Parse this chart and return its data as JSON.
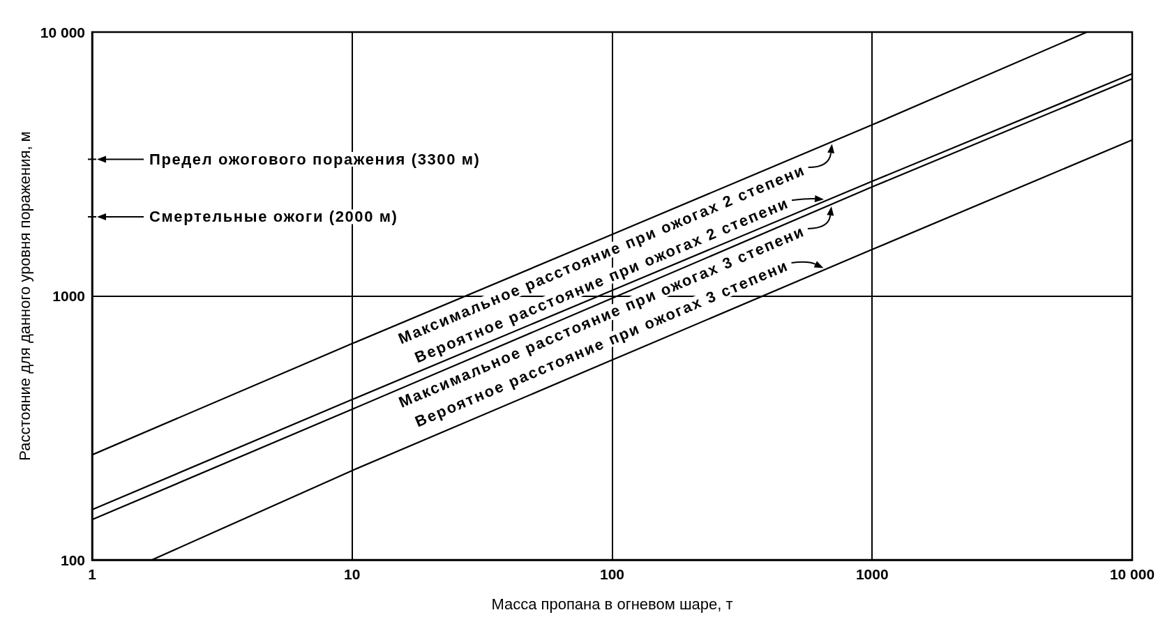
{
  "chart_data": {
    "type": "line",
    "xlabel": "Масса пропана в огневом шаре, т",
    "ylabel": "Расстояние для данного уровня поражения, м",
    "log": "xy",
    "xlim": [
      1,
      10000
    ],
    "ylim": [
      100,
      10000
    ],
    "xticks": [
      1,
      10,
      100,
      1000,
      {
        "value": 10000,
        "label": "10 000"
      }
    ],
    "yticks": [
      100,
      1000,
      {
        "value": 10000,
        "label": "10 000"
      }
    ],
    "grid": true,
    "marker": "none",
    "line_style": "solid",
    "series": [
      {
        "name": "Максимальное расстояние при ожогах 2 степени",
        "color": "#000000",
        "x": [
          1,
          10,
          100,
          1000,
          6700
        ],
        "values": [
          250,
          660,
          1710,
          4450,
          10000
        ]
      },
      {
        "name": "Вероятное расстояние при ожогах 2 степени",
        "color": "#000000",
        "x": [
          1,
          10,
          100,
          1000,
          10000
        ],
        "values": [
          155,
          405,
          1050,
          2720,
          6950
        ]
      },
      {
        "name": "Максимальное расстояние при ожогах 3 степени",
        "color": "#000000",
        "x": [
          1,
          10,
          100,
          1000,
          10000
        ],
        "values": [
          142,
          372,
          980,
          2590,
          6650
        ]
      },
      {
        "name": "Вероятное расстояние при ожогах 3 степени",
        "color": "#000000",
        "x": [
          1.7,
          10,
          100,
          1000,
          10000
        ],
        "values": [
          100,
          218,
          572,
          1500,
          3900
        ]
      }
    ],
    "annotations": [
      "Предел ожогового поражения (3300 м)",
      "Смертельные ожоги (2000 м)"
    ]
  }
}
